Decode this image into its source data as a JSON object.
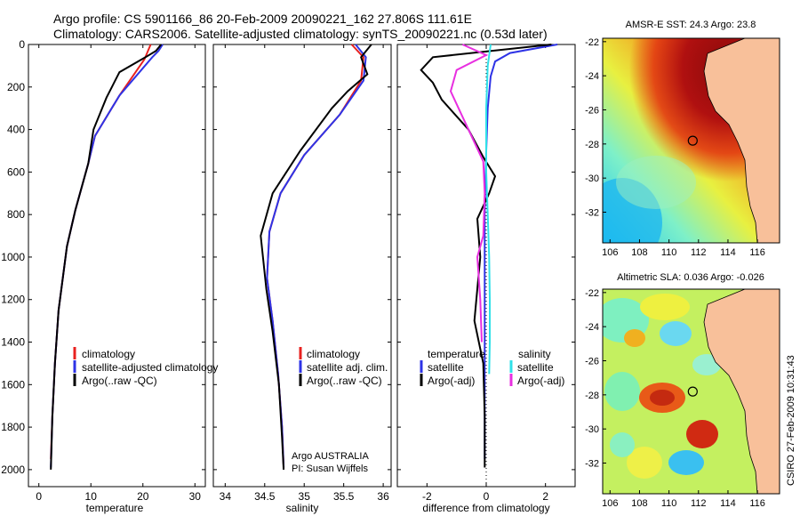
{
  "title_line1": "Argo profile: CS 5901166_86 20-Feb-2009 20090221_162 27.806S 111.61E",
  "title_line2": "Climatology: CARS2006. Satellite-adjusted climatology: synTS_20090221.nc (0.53d later)",
  "credit": "Argo AUSTRALIA",
  "pi": "PI: Susan Wijffels",
  "stamp": "CSIRO 27-Feb-2009 10:31:43",
  "colors": {
    "climatology": "#e8211f",
    "satellite": "#2e33e6",
    "argo": "#000000",
    "sal_satellite": "#2fe0e8",
    "sal_argo": "#e82fe0"
  },
  "legend": {
    "temperature": [
      "climatology",
      "satellite-adjusted climatology",
      "Argo(..raw -QC)"
    ],
    "salinity": [
      "climatology",
      "satellite adj. clim.",
      "Argo(..raw -QC)"
    ],
    "diff_head_t": "temperature",
    "diff_head_s": "salinity",
    "diff_t": [
      "satellite",
      "Argo(-adj)"
    ],
    "diff_s": [
      "satellite",
      "Argo(-adj)"
    ]
  },
  "chart_data": [
    {
      "type": "line",
      "xlabel": "temperature",
      "xticks": [
        0,
        10,
        20,
        30
      ],
      "xlim": [
        -2,
        32
      ],
      "ylim": [
        2080,
        0
      ],
      "yticks": [
        0,
        200,
        400,
        600,
        800,
        1000,
        1200,
        1400,
        1600,
        1800,
        2000
      ],
      "series": [
        {
          "name": "climatology",
          "color_key": "climatology",
          "x": [
            21.5,
            20.3,
            15.5,
            10.8,
            9.5,
            7.0,
            5.4,
            3.8,
            3.1,
            2.6,
            2.3
          ],
          "y": [
            0,
            70,
            240,
            430,
            560,
            780,
            950,
            1250,
            1500,
            1750,
            1950
          ]
        },
        {
          "name": "satellite-adjusted climatology",
          "color_key": "satellite",
          "x": [
            23.8,
            23.0,
            21.8,
            15.5,
            10.8,
            9.5,
            7.0,
            5.4,
            3.8,
            3.1,
            2.6,
            2.3
          ],
          "y": [
            0,
            30,
            60,
            240,
            430,
            560,
            780,
            950,
            1250,
            1500,
            1750,
            1990
          ]
        },
        {
          "name": "Argo(..raw -QC)",
          "color_key": "argo",
          "x": [
            23.5,
            22.5,
            20.5,
            15.5,
            13.0,
            10.5,
            9.5,
            7.0,
            5.4,
            3.8,
            3.1,
            2.6,
            2.3
          ],
          "y": [
            0,
            30,
            60,
            130,
            250,
            400,
            560,
            780,
            950,
            1250,
            1500,
            1750,
            2000
          ]
        }
      ]
    },
    {
      "type": "line",
      "xlabel": "salinity",
      "xticks": [
        34,
        34.5,
        35,
        35.5,
        36
      ],
      "xlim": [
        33.85,
        36.1
      ],
      "ylim": [
        2080,
        0
      ],
      "series": [
        {
          "name": "climatology",
          "color_key": "climatology",
          "x": [
            35.6,
            35.75,
            35.72,
            35.45,
            35.0,
            34.7,
            34.56,
            34.53,
            34.6,
            34.67,
            34.72,
            34.74
          ],
          "y": [
            0,
            60,
            170,
            330,
            520,
            700,
            880,
            1100,
            1300,
            1550,
            1800,
            1990
          ]
        },
        {
          "name": "satellite adj. clim.",
          "color_key": "satellite",
          "x": [
            35.65,
            35.78,
            35.75,
            35.45,
            35.0,
            34.7,
            34.56,
            34.53,
            34.6,
            34.67,
            34.72,
            34.74
          ],
          "y": [
            0,
            60,
            170,
            330,
            520,
            700,
            880,
            1100,
            1300,
            1550,
            1800,
            1990
          ]
        },
        {
          "name": "Argo(..raw -QC)",
          "color_key": "argo",
          "x": [
            35.85,
            35.72,
            35.8,
            35.55,
            35.35,
            34.95,
            34.6,
            34.45,
            34.52,
            34.6,
            34.68,
            34.72,
            34.74
          ],
          "y": [
            0,
            60,
            140,
            220,
            300,
            500,
            700,
            900,
            1150,
            1350,
            1600,
            1850,
            2000
          ]
        }
      ]
    },
    {
      "type": "line",
      "xlabel": "difference from climatology",
      "xticks": [
        -2,
        0,
        2
      ],
      "xlim": [
        -3.0,
        3.0
      ],
      "ylim": [
        2080,
        0
      ],
      "series": [
        {
          "name": "temperature satellite",
          "color_key": "satellite",
          "x": [
            2.4,
            0.8,
            0.3,
            0.15,
            0.05,
            0.0,
            -0.05,
            -0.05,
            -0.05,
            -0.05,
            -0.05
          ],
          "y": [
            0,
            40,
            80,
            150,
            300,
            500,
            800,
            1100,
            1400,
            1700,
            1950
          ]
        },
        {
          "name": "temperature Argo(-adj)",
          "color_key": "argo",
          "x": [
            2.2,
            -1.8,
            -2.2,
            -1.8,
            -1.5,
            -0.6,
            -0.1,
            0.3,
            0.1,
            -0.3,
            -0.2,
            -0.4,
            -0.1,
            -0.05,
            -0.05
          ],
          "y": [
            0,
            60,
            120,
            180,
            260,
            400,
            530,
            620,
            700,
            820,
            1000,
            1300,
            1500,
            1750,
            1990
          ]
        },
        {
          "name": "salinity satellite",
          "color_key": "sal_satellite",
          "x": [
            0.15,
            0.05,
            0.0,
            0.0,
            0.05,
            0.1,
            0.12,
            0.12,
            0.1
          ],
          "y": [
            0,
            100,
            300,
            600,
            800,
            1000,
            1200,
            1400,
            1550
          ]
        },
        {
          "name": "salinity Argo(-adj)",
          "color_key": "sal_argo",
          "x": [
            -0.8,
            0.0,
            -1.0,
            -1.2,
            -0.6,
            -0.1,
            -0.05,
            -0.1,
            -0.3,
            -0.2,
            -0.15
          ],
          "y": [
            0,
            50,
            120,
            220,
            400,
            550,
            700,
            900,
            1000,
            1200,
            1400
          ]
        }
      ]
    }
  ],
  "maps": [
    {
      "title": "AMSR-E SST: 24.3 Argo: 23.8",
      "xticks": [
        "106",
        "108",
        "110",
        "112",
        "114",
        "116"
      ],
      "yticks": [
        "-22",
        "-24",
        "-26",
        "-28",
        "-30",
        "-32"
      ],
      "marker": {
        "lon": 111.61,
        "lat": -27.806
      }
    },
    {
      "title": "Altimetric SLA: 0.036 Argo: -0.026",
      "xticks": [
        "106",
        "108",
        "110",
        "112",
        "114",
        "116"
      ],
      "yticks": [
        "-22",
        "-24",
        "-26",
        "-28",
        "-30",
        "-32"
      ],
      "marker": {
        "lon": 111.61,
        "lat": -27.806
      }
    }
  ]
}
